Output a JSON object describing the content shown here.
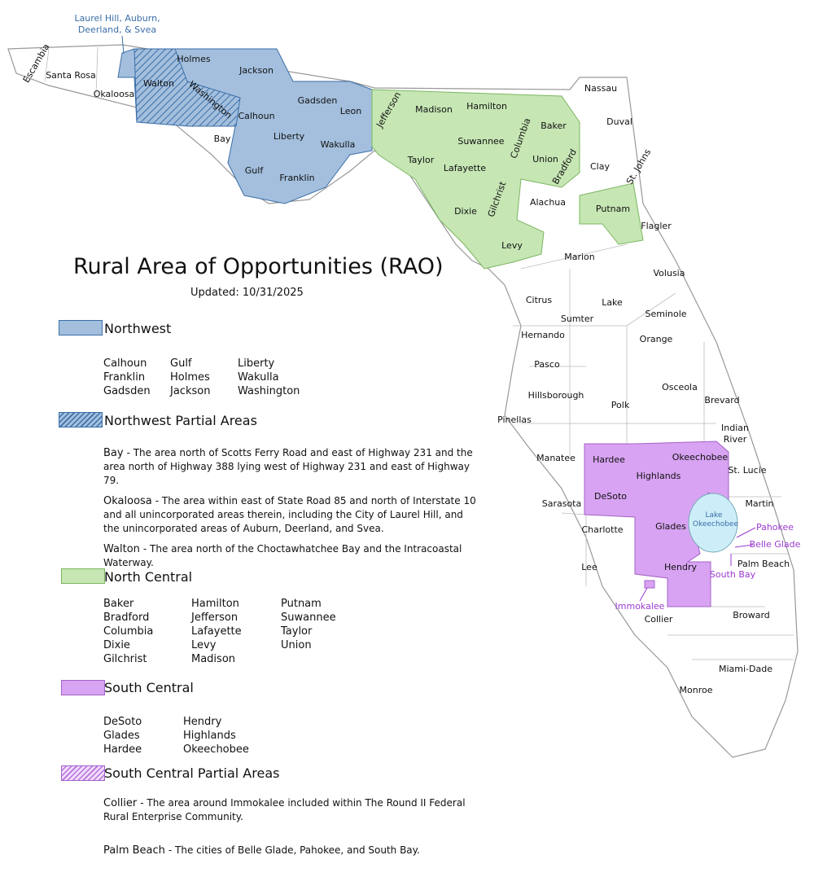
{
  "title": "Rural Area of Opportunities (RAO)",
  "updated": "Updated: 10/31/2025",
  "sections": [
    {
      "heading": "Northwest",
      "items": [
        "Calhoun",
        "Franklin",
        "Gadsden",
        "Gulf",
        "Holmes",
        "Jackson",
        "Liberty",
        "Wakulla",
        "Washington"
      ]
    },
    {
      "heading": "Northwest Partial Areas",
      "notes": [
        {
          "name": "Bay",
          "text": "- The area north of Scotts Ferry Road and east of Highway 231 and the area north of Highway 388 lying west of Highway 231 and east of Highway 79."
        },
        {
          "name": "Okaloosa",
          "text": "- The area within east of State Road 85 and north of Interstate 10 and all unincorporated areas therein, including the City of Laurel Hill, and the unincorporated areas of Auburn, Deerland, and Svea."
        },
        {
          "name": "Walton",
          "text": "- The area north of the Choctawhatchee Bay and the Intracoastal Waterway."
        }
      ]
    },
    {
      "heading": "North Central",
      "items": [
        "Baker",
        "Bradford",
        "Columbia",
        "Dixie",
        "Gilchrist",
        "Hamilton",
        "Jefferson",
        "Lafayette",
        "Levy",
        "Madison",
        "Putnam",
        "Suwannee",
        "Taylor",
        "Union"
      ]
    },
    {
      "heading": "South Central",
      "items": [
        "DeSoto",
        "Glades",
        "Hardee",
        "Hendry",
        "Highlands",
        "Okeechobee"
      ]
    },
    {
      "heading": "South Central Partial Areas",
      "notes": [
        {
          "name": "Collier",
          "text": "- The area around Immokalee included within The Round II Federal Rural Enterprise Community."
        },
        {
          "name": "Palm Beach",
          "text": "- The cities of Belle Glade, Pahokee, and South Bay."
        }
      ]
    }
  ],
  "map": {
    "counties": [
      "Escambia",
      "Santa Rosa",
      "Okaloosa",
      "Walton",
      "Holmes",
      "Jackson",
      "Washington",
      "Calhoun",
      "Gadsden",
      "Liberty",
      "Leon",
      "Bay",
      "Gulf",
      "Franklin",
      "Wakulla",
      "Jefferson",
      "Madison",
      "Hamilton",
      "Columbia",
      "Baker",
      "Suwannee",
      "Taylor",
      "Lafayette",
      "Union",
      "Bradford",
      "Clay",
      "Nassau",
      "Duval",
      "St. Johns",
      "Dixie",
      "Gilchrist",
      "Alachua",
      "Putnam",
      "Flagler",
      "Levy",
      "Marion",
      "Volusia",
      "Citrus",
      "Lake",
      "Seminole",
      "Sumter",
      "Hernando",
      "Orange",
      "Pasco",
      "Osceola",
      "Hillsborough",
      "Polk",
      "Brevard",
      "Pinellas",
      "Indian River",
      "Manatee",
      "Hardee",
      "Okeechobee",
      "Highlands",
      "St. Lucie",
      "DeSoto",
      "Sarasota",
      "Martin",
      "Glades",
      "Charlotte",
      "Palm Beach",
      "Lee",
      "Hendry",
      "Collier",
      "Broward",
      "Miami-Dade",
      "Monroe"
    ],
    "lake": "Lake Okeechobee",
    "callouts": [
      "Laurel Hill, Auburn, Deerland, & Svea",
      "Pahokee",
      "Belle Glade",
      "South Bay",
      "Immokalee"
    ]
  }
}
